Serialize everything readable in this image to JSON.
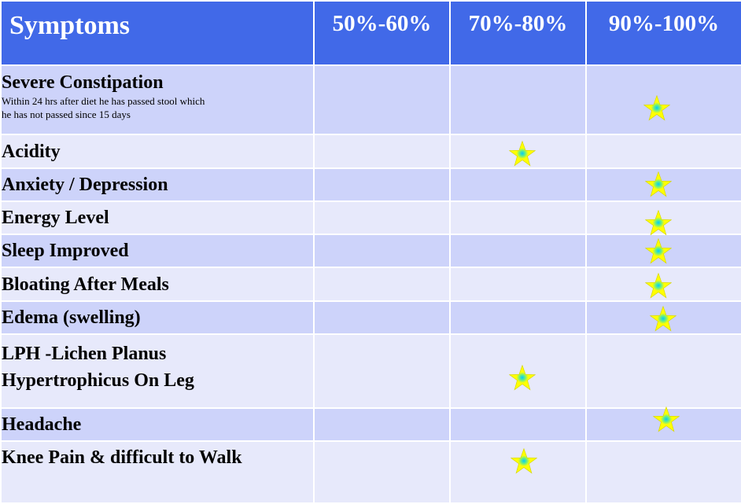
{
  "header": {
    "symptoms": "Symptoms",
    "col1": "50%-60%",
    "col2": "70%-80%",
    "col3": "90%-100%"
  },
  "rows": [
    {
      "label": "Severe Constipation",
      "note": "Within   24 hrs after diet he has passed stool which he has not passed since 15 days",
      "rating": "90%-100%"
    },
    {
      "label": "Acidity",
      "rating": "70%-80%"
    },
    {
      "label": "Anxiety / Depression",
      "rating": "90%-100%"
    },
    {
      "label": "Energy Level",
      "rating": "90%-100%"
    },
    {
      "label": "Sleep Improved",
      "rating": "90%-100%"
    },
    {
      "label": "Bloating After Meals",
      "rating": "90%-100%"
    },
    {
      "label": "Edema (swelling)",
      "rating": "90%-100%"
    },
    {
      "label_line1": "LPH -Lichen Planus",
      "label_line2": "Hypertrophicus  On Leg",
      "rating": "70%-80%"
    },
    {
      "label": "Headache",
      "rating": "90%-100%"
    },
    {
      "label": "Knee Pain & difficult to Walk",
      "rating": "70%-80%"
    }
  ],
  "icons": {
    "rating_mark": "star-icon"
  },
  "colors": {
    "header_bg": "#4169e8",
    "row_dark": "#cdd3fa",
    "row_light": "#e7e9fb",
    "star_fill": "#ffff00",
    "star_center": "#00c8ff"
  }
}
